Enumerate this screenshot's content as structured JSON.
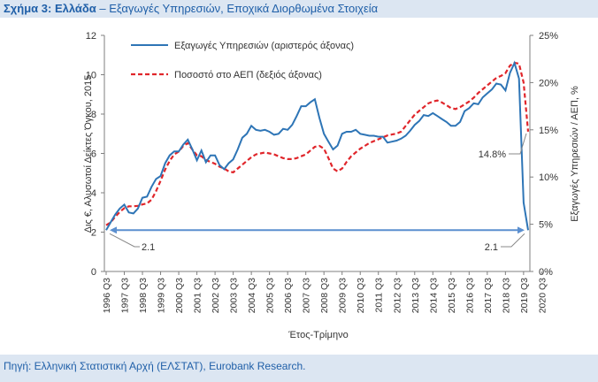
{
  "title": {
    "prefix": "Σχήμα 3: Ελλάδα",
    "rest": " – Εξαγωγές Υπηρεσιών, Εποχικά Διορθωμένα Στοιχεία"
  },
  "source": "Πηγή: Ελληνική Στατιστική Αρχή (ΕΛΣΤΑΤ), Eurobank Research.",
  "colors": {
    "exports": "#2e75b6",
    "gdp_share": "#e0262b",
    "arrow": "#5b8fcf",
    "title": "#1f5fa8",
    "band": "#dce6f2"
  },
  "chart_data": {
    "type": "line",
    "xlabel": "Έτος-Τρίμηνο",
    "ylabel_left": "Δις €, Αλυσωτοί Δείκτες Όγκου, 2015",
    "ylabel_right": "Εξαγωγές Υπηρεσιών / ΑΕΠ, %",
    "ylim_left": [
      0,
      12
    ],
    "ylim_right": [
      0,
      25
    ],
    "yticks_left": [
      "0",
      "2",
      "4",
      "6",
      "8",
      "10",
      "12"
    ],
    "yticks_right": [
      "0%",
      "5%",
      "10%",
      "15%",
      "20%",
      "25%"
    ],
    "x_tick_labels": [
      "1996 Q3",
      "1997 Q3",
      "1998 Q3",
      "1999 Q3",
      "2000 Q3",
      "2001 Q3",
      "2002 Q3",
      "2003 Q3",
      "2004 Q3",
      "2005 Q3",
      "2006 Q3",
      "2007 Q3",
      "2008 Q3",
      "2009 Q3",
      "2010 Q3",
      "2011 Q3",
      "2012 Q3",
      "2013 Q3",
      "2014 Q3",
      "2015 Q3",
      "2016 Q3",
      "2017 Q3",
      "2018 Q3",
      "2019 Q3",
      "2020 Q3"
    ],
    "legend": {
      "placement": "top-left"
    },
    "annotations": {
      "left_start": "2.1",
      "left_end": "2.1",
      "right_last": "14.8%"
    },
    "x_start": "1996 Q3",
    "series": [
      {
        "name": "Εξαγωγές Υπηρεσιών (αριστερός άξονας)",
        "axis": "left",
        "style": "solid",
        "values": [
          2.1,
          2.5,
          2.9,
          3.2,
          3.4,
          3.0,
          2.95,
          3.2,
          3.75,
          3.8,
          4.3,
          4.7,
          4.85,
          5.5,
          5.9,
          6.1,
          6.1,
          6.45,
          6.7,
          6.2,
          5.65,
          6.15,
          5.55,
          5.9,
          5.9,
          5.4,
          5.2,
          5.5,
          5.7,
          6.2,
          6.8,
          7.0,
          7.4,
          7.2,
          7.15,
          7.2,
          7.1,
          6.95,
          7.0,
          7.25,
          7.2,
          7.45,
          7.9,
          8.4,
          8.4,
          8.6,
          8.75,
          7.8,
          7.0,
          6.6,
          6.2,
          6.4,
          7.0,
          7.1,
          7.1,
          7.2,
          7.0,
          6.95,
          6.9,
          6.9,
          6.85,
          6.85,
          6.55,
          6.6,
          6.65,
          6.75,
          6.9,
          7.15,
          7.45,
          7.65,
          7.95,
          7.9,
          8.05,
          7.9,
          7.75,
          7.6,
          7.4,
          7.4,
          7.6,
          8.15,
          8.3,
          8.55,
          8.5,
          8.85,
          9.05,
          9.25,
          9.55,
          9.5,
          9.2,
          10.1,
          10.6,
          9.8,
          3.5,
          2.1
        ]
      },
      {
        "name": "Ποσοστό στο ΑΕΠ (δεξιός άξονας)",
        "axis": "right",
        "style": "dashed",
        "values": [
          4.9,
          5.2,
          5.8,
          6.3,
          6.7,
          6.9,
          6.9,
          6.95,
          7.1,
          7.2,
          7.6,
          8.5,
          9.6,
          10.8,
          11.7,
          12.4,
          12.7,
          13.3,
          13.6,
          12.9,
          12.3,
          12.2,
          11.8,
          11.6,
          11.4,
          11.1,
          10.9,
          10.6,
          10.5,
          10.9,
          11.3,
          11.7,
          12.1,
          12.4,
          12.5,
          12.6,
          12.5,
          12.4,
          12.2,
          12.0,
          11.9,
          11.9,
          12.0,
          12.2,
          12.4,
          12.8,
          13.2,
          13.3,
          13.0,
          12.0,
          10.9,
          10.6,
          10.9,
          11.6,
          12.2,
          12.6,
          13.0,
          13.3,
          13.6,
          13.8,
          14.0,
          14.2,
          14.4,
          14.5,
          14.6,
          14.8,
          15.4,
          16.0,
          16.6,
          17.0,
          17.4,
          17.8,
          18.0,
          18.1,
          17.9,
          17.6,
          17.3,
          17.2,
          17.4,
          17.7,
          18.0,
          18.4,
          18.9,
          19.3,
          19.7,
          20.1,
          20.5,
          20.7,
          21.0,
          21.8,
          22.1,
          22.0,
          20.0,
          14.8
        ]
      }
    ]
  }
}
